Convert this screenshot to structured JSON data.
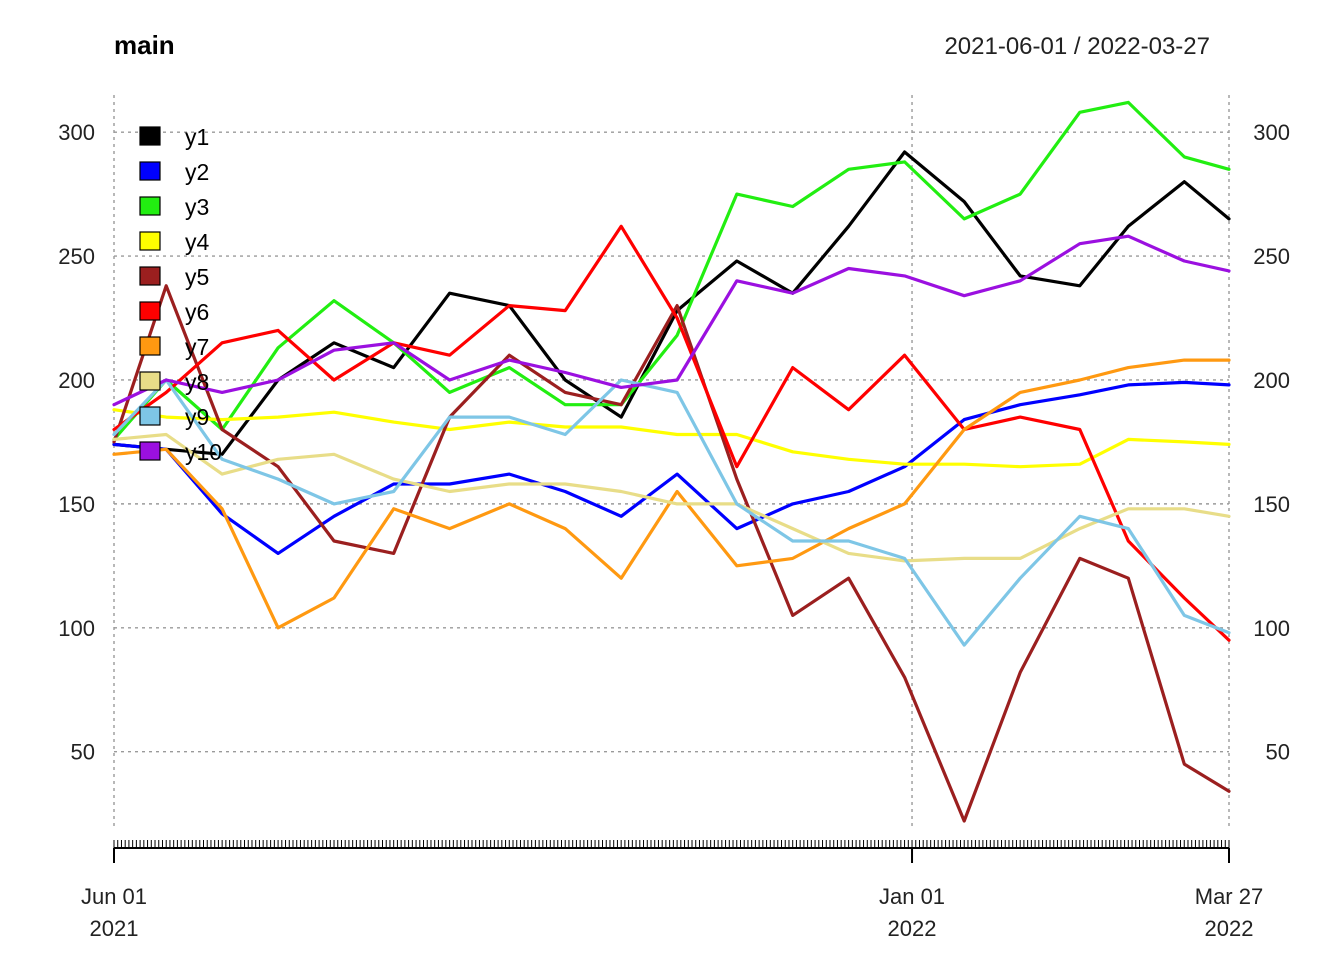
{
  "chart_data": {
    "type": "line",
    "title": "main",
    "date_range": "2021-06-01 / 2022-03-27",
    "x_start": "2021-06-01",
    "x_end": "2022-03-27",
    "ylim": [
      20,
      315
    ],
    "y_ticks": [
      50,
      100,
      150,
      200,
      250,
      300
    ],
    "y_tick_labels": [
      "50",
      "100",
      "150",
      "200",
      "250",
      "300"
    ],
    "x_ticks": [
      {
        "date": "2021-06-01",
        "month": "Jun 01",
        "year": "2021"
      },
      {
        "date": "2022-01-01",
        "month": "Jan 01",
        "year": "2022"
      },
      {
        "date": "2022-03-27",
        "month": "Mar 27",
        "year": "2022"
      }
    ],
    "grid": true,
    "legend_position": "top-left",
    "series": [
      {
        "name": "y1",
        "color": "#000000",
        "points": [
          [
            "2021-06-01",
            174
          ],
          [
            "2021-06-15",
            172
          ],
          [
            "2021-06-30",
            170
          ],
          [
            "2021-07-15",
            200
          ],
          [
            "2021-07-30",
            215
          ],
          [
            "2021-08-15",
            205
          ],
          [
            "2021-08-30",
            235
          ],
          [
            "2021-09-15",
            230
          ],
          [
            "2021-09-30",
            200
          ],
          [
            "2021-10-15",
            185
          ],
          [
            "2021-10-30",
            228
          ],
          [
            "2021-11-15",
            248
          ],
          [
            "2021-11-30",
            235
          ],
          [
            "2021-12-15",
            262
          ],
          [
            "2021-12-30",
            292
          ],
          [
            "2022-01-15",
            272
          ],
          [
            "2022-01-30",
            242
          ],
          [
            "2022-02-15",
            238
          ],
          [
            "2022-02-28",
            262
          ],
          [
            "2022-03-15",
            280
          ],
          [
            "2022-03-27",
            265
          ]
        ]
      },
      {
        "name": "y2",
        "color": "#0000ff",
        "points": [
          [
            "2021-06-01",
            174
          ],
          [
            "2021-06-15",
            172
          ],
          [
            "2021-06-30",
            146
          ],
          [
            "2021-07-15",
            130
          ],
          [
            "2021-07-30",
            145
          ],
          [
            "2021-08-15",
            158
          ],
          [
            "2021-08-30",
            158
          ],
          [
            "2021-09-15",
            162
          ],
          [
            "2021-09-30",
            155
          ],
          [
            "2021-10-15",
            145
          ],
          [
            "2021-10-30",
            162
          ],
          [
            "2021-11-15",
            140
          ],
          [
            "2021-11-30",
            150
          ],
          [
            "2021-12-15",
            155
          ],
          [
            "2021-12-30",
            165
          ],
          [
            "2022-01-15",
            184
          ],
          [
            "2022-01-30",
            190
          ],
          [
            "2022-02-15",
            194
          ],
          [
            "2022-02-28",
            198
          ],
          [
            "2022-03-15",
            199
          ],
          [
            "2022-03-27",
            198
          ]
        ]
      },
      {
        "name": "y3",
        "color": "#22ee11",
        "points": [
          [
            "2021-06-01",
            176
          ],
          [
            "2021-06-15",
            200
          ],
          [
            "2021-06-30",
            180
          ],
          [
            "2021-07-15",
            213
          ],
          [
            "2021-07-30",
            232
          ],
          [
            "2021-08-15",
            215
          ],
          [
            "2021-08-30",
            195
          ],
          [
            "2021-09-15",
            205
          ],
          [
            "2021-09-30",
            190
          ],
          [
            "2021-10-15",
            190
          ],
          [
            "2021-10-30",
            218
          ],
          [
            "2021-11-15",
            275
          ],
          [
            "2021-11-30",
            270
          ],
          [
            "2021-12-15",
            285
          ],
          [
            "2021-12-30",
            288
          ],
          [
            "2022-01-15",
            265
          ],
          [
            "2022-01-30",
            275
          ],
          [
            "2022-02-15",
            308
          ],
          [
            "2022-02-28",
            312
          ],
          [
            "2022-03-15",
            290
          ],
          [
            "2022-03-27",
            285
          ]
        ]
      },
      {
        "name": "y4",
        "color": "#ffff00",
        "points": [
          [
            "2021-06-01",
            188
          ],
          [
            "2021-06-15",
            185
          ],
          [
            "2021-06-30",
            184
          ],
          [
            "2021-07-15",
            185
          ],
          [
            "2021-07-30",
            187
          ],
          [
            "2021-08-15",
            183
          ],
          [
            "2021-08-30",
            180
          ],
          [
            "2021-09-15",
            183
          ],
          [
            "2021-09-30",
            181
          ],
          [
            "2021-10-15",
            181
          ],
          [
            "2021-10-30",
            178
          ],
          [
            "2021-11-15",
            178
          ],
          [
            "2021-11-30",
            171
          ],
          [
            "2021-12-15",
            168
          ],
          [
            "2021-12-30",
            166
          ],
          [
            "2022-01-15",
            166
          ],
          [
            "2022-01-30",
            165
          ],
          [
            "2022-02-15",
            166
          ],
          [
            "2022-02-28",
            176
          ],
          [
            "2022-03-15",
            175
          ],
          [
            "2022-03-27",
            174
          ]
        ]
      },
      {
        "name": "y5",
        "color": "#9b1f1f",
        "points": [
          [
            "2021-06-01",
            175
          ],
          [
            "2021-06-15",
            238
          ],
          [
            "2021-06-30",
            180
          ],
          [
            "2021-07-15",
            165
          ],
          [
            "2021-07-30",
            135
          ],
          [
            "2021-08-15",
            130
          ],
          [
            "2021-08-30",
            185
          ],
          [
            "2021-09-15",
            210
          ],
          [
            "2021-09-30",
            195
          ],
          [
            "2021-10-15",
            190
          ],
          [
            "2021-10-30",
            230
          ],
          [
            "2021-11-15",
            160
          ],
          [
            "2021-11-30",
            105
          ],
          [
            "2021-12-15",
            120
          ],
          [
            "2021-12-30",
            80
          ],
          [
            "2022-01-15",
            22
          ],
          [
            "2022-01-30",
            82
          ],
          [
            "2022-02-15",
            128
          ],
          [
            "2022-02-28",
            120
          ],
          [
            "2022-03-15",
            45
          ],
          [
            "2022-03-27",
            34
          ]
        ]
      },
      {
        "name": "y6",
        "color": "#ff0000",
        "points": [
          [
            "2021-06-01",
            180
          ],
          [
            "2021-06-15",
            195
          ],
          [
            "2021-06-30",
            215
          ],
          [
            "2021-07-15",
            220
          ],
          [
            "2021-07-30",
            200
          ],
          [
            "2021-08-15",
            215
          ],
          [
            "2021-08-30",
            210
          ],
          [
            "2021-09-15",
            230
          ],
          [
            "2021-09-30",
            228
          ],
          [
            "2021-10-15",
            262
          ],
          [
            "2021-10-30",
            225
          ],
          [
            "2021-11-15",
            165
          ],
          [
            "2021-11-30",
            205
          ],
          [
            "2021-12-15",
            188
          ],
          [
            "2021-12-30",
            210
          ],
          [
            "2022-01-15",
            180
          ],
          [
            "2022-01-30",
            185
          ],
          [
            "2022-02-15",
            180
          ],
          [
            "2022-02-28",
            135
          ],
          [
            "2022-03-15",
            112
          ],
          [
            "2022-03-27",
            95
          ]
        ]
      },
      {
        "name": "y7",
        "color": "#ff9911",
        "points": [
          [
            "2021-06-01",
            170
          ],
          [
            "2021-06-15",
            172
          ],
          [
            "2021-06-30",
            148
          ],
          [
            "2021-07-15",
            100
          ],
          [
            "2021-07-30",
            112
          ],
          [
            "2021-08-15",
            148
          ],
          [
            "2021-08-30",
            140
          ],
          [
            "2021-09-15",
            150
          ],
          [
            "2021-09-30",
            140
          ],
          [
            "2021-10-15",
            120
          ],
          [
            "2021-10-30",
            155
          ],
          [
            "2021-11-15",
            125
          ],
          [
            "2021-11-30",
            128
          ],
          [
            "2021-12-15",
            140
          ],
          [
            "2021-12-30",
            150
          ],
          [
            "2022-01-15",
            180
          ],
          [
            "2022-01-30",
            195
          ],
          [
            "2022-02-15",
            200
          ],
          [
            "2022-02-28",
            205
          ],
          [
            "2022-03-15",
            208
          ],
          [
            "2022-03-27",
            208
          ]
        ]
      },
      {
        "name": "y8",
        "color": "#e8dd88",
        "points": [
          [
            "2021-06-01",
            176
          ],
          [
            "2021-06-15",
            178
          ],
          [
            "2021-06-30",
            162
          ],
          [
            "2021-07-15",
            168
          ],
          [
            "2021-07-30",
            170
          ],
          [
            "2021-08-15",
            160
          ],
          [
            "2021-08-30",
            155
          ],
          [
            "2021-09-15",
            158
          ],
          [
            "2021-09-30",
            158
          ],
          [
            "2021-10-15",
            155
          ],
          [
            "2021-10-30",
            150
          ],
          [
            "2021-11-15",
            150
          ],
          [
            "2021-11-30",
            140
          ],
          [
            "2021-12-15",
            130
          ],
          [
            "2021-12-30",
            127
          ],
          [
            "2022-01-15",
            128
          ],
          [
            "2022-01-30",
            128
          ],
          [
            "2022-02-15",
            140
          ],
          [
            "2022-02-28",
            148
          ],
          [
            "2022-03-15",
            148
          ],
          [
            "2022-03-27",
            145
          ]
        ]
      },
      {
        "name": "y9",
        "color": "#7ec6e6",
        "points": [
          [
            "2021-06-01",
            178
          ],
          [
            "2021-06-15",
            200
          ],
          [
            "2021-06-30",
            168
          ],
          [
            "2021-07-15",
            160
          ],
          [
            "2021-07-30",
            150
          ],
          [
            "2021-08-15",
            155
          ],
          [
            "2021-08-30",
            185
          ],
          [
            "2021-09-15",
            185
          ],
          [
            "2021-09-30",
            178
          ],
          [
            "2021-10-15",
            200
          ],
          [
            "2021-10-30",
            195
          ],
          [
            "2021-11-15",
            150
          ],
          [
            "2021-11-30",
            135
          ],
          [
            "2021-12-15",
            135
          ],
          [
            "2021-12-30",
            128
          ],
          [
            "2022-01-15",
            93
          ],
          [
            "2022-01-30",
            120
          ],
          [
            "2022-02-15",
            145
          ],
          [
            "2022-02-28",
            140
          ],
          [
            "2022-03-15",
            105
          ],
          [
            "2022-03-27",
            98
          ]
        ]
      },
      {
        "name": "y10",
        "color": "#9b10e0",
        "points": [
          [
            "2021-06-01",
            190
          ],
          [
            "2021-06-15",
            200
          ],
          [
            "2021-06-30",
            195
          ],
          [
            "2021-07-15",
            200
          ],
          [
            "2021-07-30",
            212
          ],
          [
            "2021-08-15",
            215
          ],
          [
            "2021-08-30",
            200
          ],
          [
            "2021-09-15",
            208
          ],
          [
            "2021-09-30",
            203
          ],
          [
            "2021-10-15",
            197
          ],
          [
            "2021-10-30",
            200
          ],
          [
            "2021-11-15",
            240
          ],
          [
            "2021-11-30",
            235
          ],
          [
            "2021-12-15",
            245
          ],
          [
            "2021-12-30",
            242
          ],
          [
            "2022-01-15",
            234
          ],
          [
            "2022-01-30",
            240
          ],
          [
            "2022-02-15",
            255
          ],
          [
            "2022-02-28",
            258
          ],
          [
            "2022-03-15",
            248
          ],
          [
            "2022-03-27",
            244
          ]
        ]
      }
    ]
  }
}
